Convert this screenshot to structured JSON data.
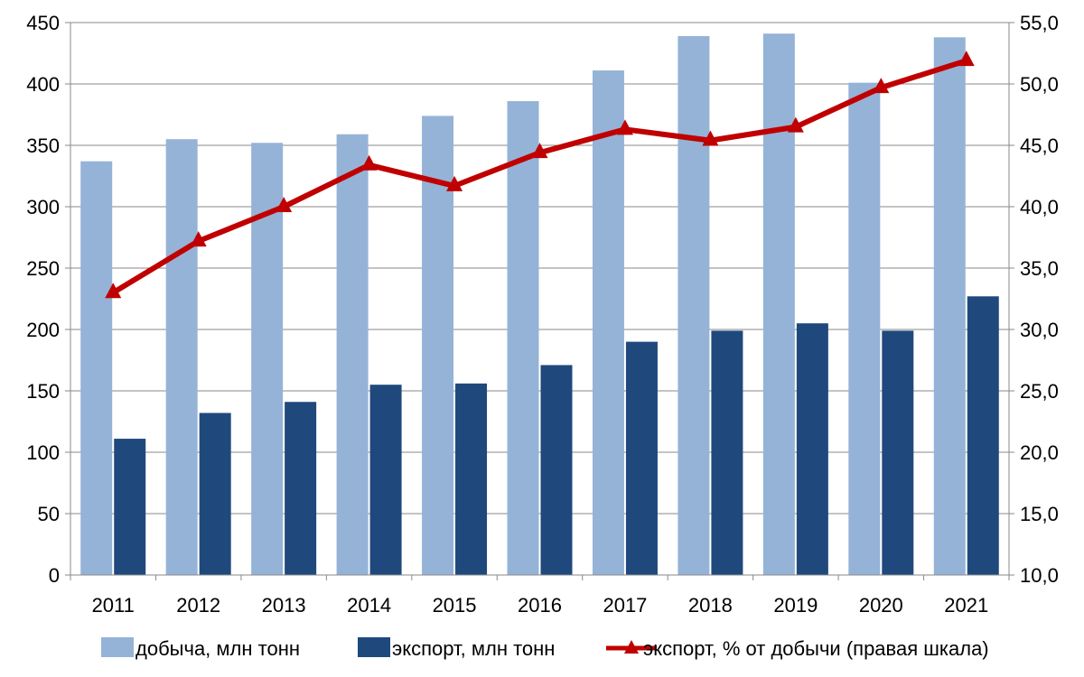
{
  "chart_data": {
    "type": "bar",
    "categories": [
      "2011",
      "2012",
      "2013",
      "2014",
      "2015",
      "2016",
      "2017",
      "2018",
      "2019",
      "2020",
      "2021"
    ],
    "series": [
      {
        "name": "добыча, млн тонн",
        "type": "bar",
        "axis": "left",
        "color": "#95B3D7",
        "values": [
          337,
          355,
          352,
          359,
          374,
          386,
          411,
          439,
          441,
          401,
          438
        ]
      },
      {
        "name": "экспорт, млн тонн",
        "type": "bar",
        "axis": "left",
        "color": "#1F497D",
        "values": [
          111,
          132,
          141,
          155,
          156,
          171,
          190,
          199,
          205,
          199,
          227
        ]
      },
      {
        "name": "экспорт, % от добычи (правая шкала)",
        "type": "line",
        "axis": "right",
        "color": "#C00000",
        "marker": "triangle",
        "values": [
          33.0,
          37.2,
          40.0,
          43.4,
          41.7,
          44.4,
          46.3,
          45.4,
          46.5,
          49.7,
          51.9
        ]
      }
    ],
    "y_left": {
      "min": 0,
      "max": 450,
      "ticks": [
        "0",
        "50",
        "100",
        "150",
        "200",
        "250",
        "300",
        "350",
        "400",
        "450"
      ]
    },
    "y_right": {
      "min": 10,
      "max": 55,
      "ticks": [
        "10,0",
        "15,0",
        "20,0",
        "25,0",
        "30,0",
        "35,0",
        "40,0",
        "45,0",
        "50,0",
        "55,0"
      ]
    },
    "grid": true,
    "legend_position": "bottom",
    "title": "",
    "xlabel": "",
    "ylabel": ""
  }
}
